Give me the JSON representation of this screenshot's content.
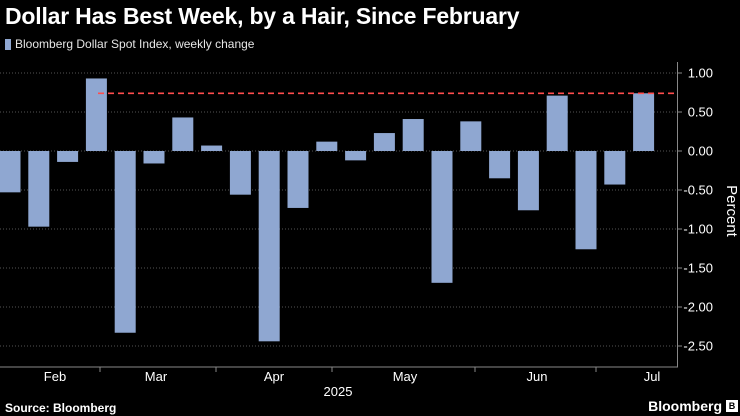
{
  "header": {
    "title": "Dollar Has Best Week, by a Hair, Since February"
  },
  "footer": {
    "source": "Source: Bloomberg",
    "brand": "Bloomberg",
    "brand_mark": "B"
  },
  "colors": {
    "bar": "#8fa7d1",
    "reference_line": "#ff4d4d",
    "grid": "#555555",
    "background": "#000000"
  },
  "chart_data": {
    "type": "bar",
    "legend": "Bloomberg Dollar Spot Index, weekly change",
    "legend_position": "top-left",
    "ylabel": "Percent",
    "xlabel": "2025",
    "ylim": [
      -2.7,
      1.1
    ],
    "yticks": [
      1.0,
      0.5,
      0.0,
      -0.5,
      -1.0,
      -1.5,
      -2.0,
      -2.5
    ],
    "ytick_labels": [
      "1.00",
      "0.50",
      "0.00",
      "-0.50",
      "-1.00",
      "-1.50",
      "-2.00",
      "-2.50"
    ],
    "month_labels": [
      "Feb",
      "Mar",
      "Apr",
      "May",
      "Jun",
      "Jul"
    ],
    "values": [
      -0.53,
      -0.97,
      -0.14,
      0.93,
      -2.33,
      -0.16,
      0.43,
      0.07,
      -0.56,
      -2.44,
      -0.73,
      0.12,
      -0.12,
      0.23,
      0.41,
      -1.69,
      0.38,
      -0.35,
      -0.76,
      0.71,
      -1.26,
      -0.43,
      0.74
    ],
    "reference_line": 0.74,
    "grid": true
  }
}
